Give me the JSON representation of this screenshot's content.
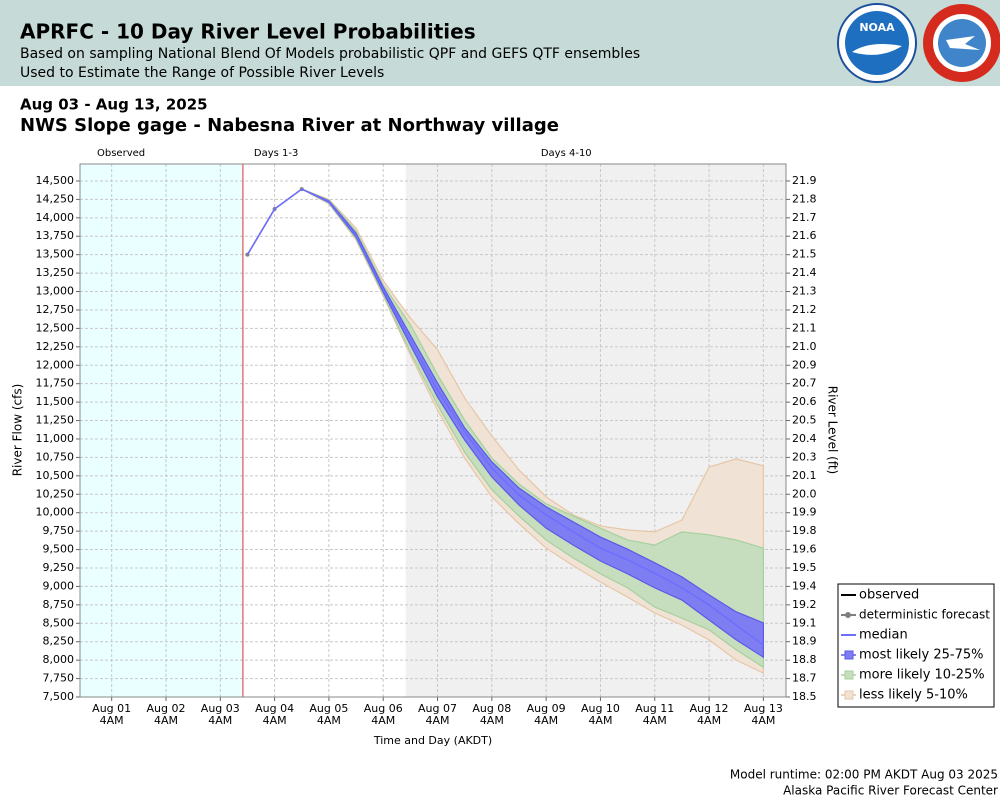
{
  "header": {
    "title": "APRFC - 10 Day River Level Probabilities",
    "subtitle1": "Based on sampling National Blend Of Models probabilistic QPF and GEFS QTF ensembles",
    "subtitle2": "Used to Estimate the Range of Possible River Levels",
    "logo1": "NOAA"
  },
  "date_range": "Aug 03 - Aug 13, 2025",
  "footer": {
    "runtime": "Model runtime: 02:00 PM AKDT Aug 03 2025",
    "center": "Alaska Pacific River Forecast Center"
  },
  "chart_data": {
    "type": "line",
    "title": "NWS Slope gage - Nabesna River at Northway village",
    "xlabel": "Time and Day (AKDT)",
    "ylabel": "River Flow (cfs)",
    "y2label": "River Level (ft)",
    "xlim": [
      "2025-07-31T14:00",
      "2025-08-13T14:00"
    ],
    "xticks": [
      {
        "value": "2025-08-01T04:00",
        "label": "Aug 01",
        "sublabel": "4AM"
      },
      {
        "value": "2025-08-02T04:00",
        "label": "Aug 02",
        "sublabel": "4AM"
      },
      {
        "value": "2025-08-03T04:00",
        "label": "Aug 03",
        "sublabel": "4AM"
      },
      {
        "value": "2025-08-04T04:00",
        "label": "Aug 04",
        "sublabel": "4AM"
      },
      {
        "value": "2025-08-05T04:00",
        "label": "Aug 05",
        "sublabel": "4AM"
      },
      {
        "value": "2025-08-06T04:00",
        "label": "Aug 06",
        "sublabel": "4AM"
      },
      {
        "value": "2025-08-07T04:00",
        "label": "Aug 07",
        "sublabel": "4AM"
      },
      {
        "value": "2025-08-08T04:00",
        "label": "Aug 08",
        "sublabel": "4AM"
      },
      {
        "value": "2025-08-09T04:00",
        "label": "Aug 09",
        "sublabel": "4AM"
      },
      {
        "value": "2025-08-10T04:00",
        "label": "Aug 10",
        "sublabel": "4AM"
      },
      {
        "value": "2025-08-11T04:00",
        "label": "Aug 11",
        "sublabel": "4AM"
      },
      {
        "value": "2025-08-12T04:00",
        "label": "Aug 12",
        "sublabel": "4AM"
      },
      {
        "value": "2025-08-13T04:00",
        "label": "Aug 13",
        "sublabel": "4AM"
      }
    ],
    "ylim": [
      7500,
      14730
    ],
    "yticks": [
      {
        "value": 7500,
        "label": "7,500"
      },
      {
        "value": 7750,
        "label": "7,750"
      },
      {
        "value": 8000,
        "label": "8,000"
      },
      {
        "value": 8250,
        "label": "8,250"
      },
      {
        "value": 8500,
        "label": "8,500"
      },
      {
        "value": 8750,
        "label": "8,750"
      },
      {
        "value": 9000,
        "label": "9,000"
      },
      {
        "value": 9250,
        "label": "9,250"
      },
      {
        "value": 9500,
        "label": "9,500"
      },
      {
        "value": 9750,
        "label": "9,750"
      },
      {
        "value": 10000,
        "label": "10,000"
      },
      {
        "value": 10250,
        "label": "10,250"
      },
      {
        "value": 10500,
        "label": "10,500"
      },
      {
        "value": 10750,
        "label": "10,750"
      },
      {
        "value": 11000,
        "label": "11,000"
      },
      {
        "value": 11250,
        "label": "11,250"
      },
      {
        "value": 11500,
        "label": "11,500"
      },
      {
        "value": 11750,
        "label": "11,750"
      },
      {
        "value": 12000,
        "label": "12,000"
      },
      {
        "value": 12250,
        "label": "12,250"
      },
      {
        "value": 12500,
        "label": "12,500"
      },
      {
        "value": 12750,
        "label": "12,750"
      },
      {
        "value": 13000,
        "label": "13,000"
      },
      {
        "value": 13250,
        "label": "13,250"
      },
      {
        "value": 13500,
        "label": "13,500"
      },
      {
        "value": 13750,
        "label": "13,750"
      },
      {
        "value": 14000,
        "label": "14,000"
      },
      {
        "value": 14250,
        "label": "14,250"
      },
      {
        "value": 14500,
        "label": "14,500"
      }
    ],
    "y2ticks": [
      18.5,
      18.7,
      18.8,
      18.9,
      19.1,
      19.2,
      19.4,
      19.5,
      19.6,
      19.8,
      19.9,
      {
        "value": 20,
        "label": "20.0"
      },
      20.1,
      20.3,
      20.4,
      20.5,
      20.6,
      20.7,
      20.9,
      {
        "value": 21,
        "label": "21.0"
      },
      21.1,
      21.2,
      21.3,
      21.4,
      21.5,
      21.6,
      21.7,
      21.8,
      21.9
    ],
    "grid": true,
    "sections": [
      {
        "name": "Observed",
        "start": "2025-07-31T14:00",
        "end": "2025-08-03T14:00",
        "color": "#eaffff"
      },
      {
        "name": "Days 1-3",
        "start": "2025-08-03T14:00",
        "end": "2025-08-06T14:00",
        "color": "#ffffff"
      },
      {
        "name": "Days 4-10",
        "start": "2025-08-06T14:00",
        "end": "2025-08-13T14:00",
        "color": "#f0f0f0"
      }
    ],
    "x": [
      "2025-08-03T16:00",
      "2025-08-04T04:00",
      "2025-08-04T16:00",
      "2025-08-05T04:00",
      "2025-08-05T16:00",
      "2025-08-06T04:00",
      "2025-08-06T16:00",
      "2025-08-07T04:00",
      "2025-08-07T16:00",
      "2025-08-08T04:00",
      "2025-08-08T16:00",
      "2025-08-09T04:00",
      "2025-08-09T16:00",
      "2025-08-10T04:00",
      "2025-08-10T16:00",
      "2025-08-11T04:00",
      "2025-08-11T16:00",
      "2025-08-12T04:00",
      "2025-08-12T16:00",
      "2025-08-13T04:00"
    ],
    "bands": [
      {
        "name": "less likely 5-10%",
        "color": "#f0e3d6",
        "edge": "#e6c6a6",
        "low": [
          13500,
          14120,
          14390,
          14190,
          13700,
          12940,
          12140,
          11390,
          10740,
          10215,
          9850,
          9520,
          9280,
          9060,
          8855,
          8640,
          8475,
          8275,
          8000,
          7825
        ],
        "high": [
          13500,
          14120,
          14390,
          14250,
          13860,
          13150,
          12640,
          12210,
          11555,
          11040,
          10580,
          10215,
          9970,
          9820,
          9765,
          9740,
          9900,
          10620,
          10730,
          10635
        ]
      },
      {
        "name": "more likely 10-25%",
        "color": "#c6ddbe",
        "edge": "#a6d09e",
        "low": [
          13500,
          14120,
          14390,
          14200,
          13720,
          12960,
          12180,
          11460,
          10820,
          10310,
          9955,
          9630,
          9385,
          9170,
          8980,
          8720,
          8570,
          8410,
          8140,
          7905
        ],
        "high": [
          13500,
          14120,
          14390,
          14240,
          13820,
          13090,
          12550,
          11870,
          11255,
          10740,
          10390,
          10120,
          9955,
          9790,
          9630,
          9560,
          9740,
          9700,
          9630,
          9520
        ]
      },
      {
        "name": "most likely 25-75%",
        "color": "#7e7ef2",
        "edge": "#5a5ae6",
        "low": [
          13500,
          14120,
          14390,
          14210,
          13740,
          12990,
          12275,
          11570,
          10985,
          10485,
          10105,
          9790,
          9560,
          9345,
          9170,
          8980,
          8815,
          8545,
          8275,
          8040
        ],
        "high": [
          13500,
          14120,
          14390,
          14230,
          13790,
          13060,
          12410,
          11760,
          11150,
          10690,
          10335,
          10080,
          9875,
          9670,
          9505,
          9320,
          9130,
          8885,
          8655,
          8505
        ]
      }
    ],
    "series": [
      {
        "name": "observed",
        "color": "#000000",
        "values": [
          null,
          null,
          null,
          null,
          null,
          null,
          null,
          null,
          null,
          null,
          null,
          null,
          null,
          null,
          null,
          null,
          null,
          null,
          null,
          null
        ]
      },
      {
        "name": "deterministic forecast",
        "color": "#808080",
        "values": [
          13500,
          14120,
          14390,
          14220,
          13760,
          13020,
          null,
          null,
          null,
          null,
          null,
          null,
          null,
          null,
          null,
          null,
          null,
          null,
          null,
          null
        ]
      },
      {
        "name": "median",
        "color": "#6e6eff",
        "values": [
          13500,
          14120,
          14390,
          14220,
          13760,
          13020,
          12340,
          11665,
          11095,
          10605,
          10240,
          9970,
          9740,
          9520,
          9360,
          9180,
          8980,
          8750,
          8475,
          8205
        ]
      }
    ]
  }
}
